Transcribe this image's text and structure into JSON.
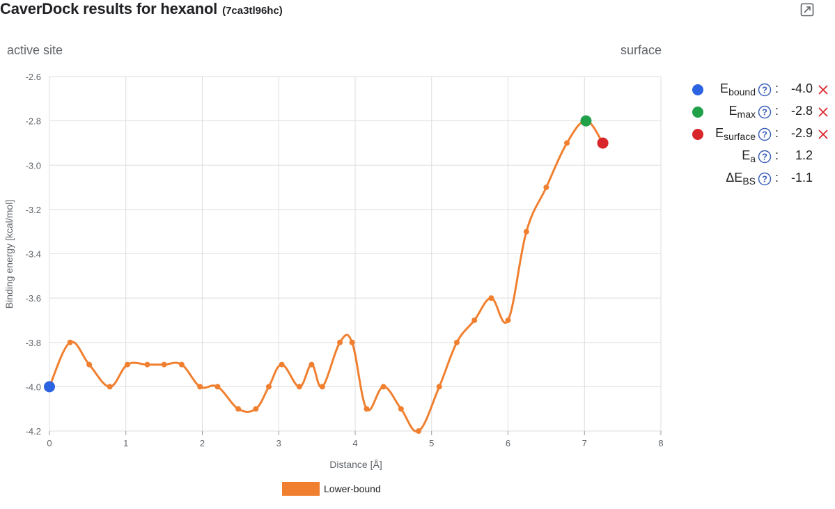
{
  "header": {
    "title": "CaverDock results for hexanol",
    "job_id": "(7ca3tl96hc)",
    "expand_icon": "expand-icon"
  },
  "direction": {
    "left": "active site",
    "right": "surface"
  },
  "legend": {
    "label": "Lower-bound",
    "color": "#f08030"
  },
  "stats": [
    {
      "symbol": "E",
      "sub": "bound",
      "value": "-4.0",
      "dot_color": "#2b63e0",
      "removable": true
    },
    {
      "symbol": "E",
      "sub": "max",
      "value": "-2.8",
      "dot_color": "#21a04a",
      "removable": true
    },
    {
      "symbol": "E",
      "sub": "surface",
      "value": "-2.9",
      "dot_color": "#d9262b",
      "removable": true
    },
    {
      "symbol": "E",
      "sub": "a",
      "value": "1.2",
      "removable": false
    },
    {
      "symbol": "ΔE",
      "sub": "BS",
      "value": "-1.1",
      "removable": false
    }
  ],
  "chart_data": {
    "type": "line",
    "xlabel": "Distance [Å]",
    "ylabel": "Binding energy [kcal/mol]",
    "xlim": [
      0,
      8
    ],
    "ylim": [
      -4.2,
      -2.6
    ],
    "xticks": [
      "0",
      "1",
      "2",
      "3",
      "4",
      "5",
      "6",
      "7",
      "8"
    ],
    "yticks": [
      "-4.2",
      "-4.0",
      "-3.8",
      "-3.6",
      "-3.4",
      "-3.2",
      "-3.0",
      "-2.8",
      "-2.6"
    ],
    "grid": true,
    "series": [
      {
        "name": "Lower-bound",
        "color": "#f08030",
        "x": [
          0,
          0.27,
          0.52,
          0.79,
          1.02,
          1.28,
          1.5,
          1.73,
          1.97,
          2.2,
          2.47,
          2.7,
          2.87,
          3.04,
          3.27,
          3.43,
          3.57,
          3.8,
          3.96,
          4.15,
          4.37,
          4.6,
          4.83,
          5.1,
          5.33,
          5.56,
          5.78,
          6.0,
          6.24,
          6.5,
          6.77,
          7.02,
          7.24
        ],
        "y": [
          -4.0,
          -3.8,
          -3.9,
          -4.0,
          -3.9,
          -3.9,
          -3.9,
          -3.9,
          -4.0,
          -4.0,
          -4.1,
          -4.1,
          -4.0,
          -3.9,
          -4.0,
          -3.9,
          -4.0,
          -3.8,
          -3.8,
          -4.1,
          -4.0,
          -4.1,
          -4.2,
          -4.0,
          -3.8,
          -3.7,
          -3.6,
          -3.7,
          -3.3,
          -3.1,
          -2.9,
          -2.8,
          -2.9
        ]
      }
    ],
    "markers": [
      {
        "name": "E_bound",
        "x": 0,
        "y": -4.0,
        "color": "#2b63e0"
      },
      {
        "name": "E_max",
        "x": 7.02,
        "y": -2.8,
        "color": "#21a04a"
      },
      {
        "name": "E_surface",
        "x": 7.24,
        "y": -2.9,
        "color": "#d9262b"
      }
    ]
  }
}
